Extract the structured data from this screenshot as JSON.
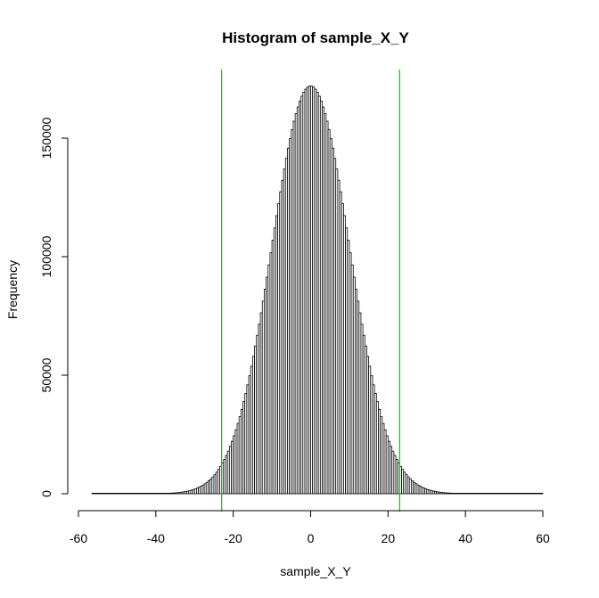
{
  "chart_data": {
    "type": "bar",
    "title": "Histogram of sample_X_Y",
    "xlabel": "sample_X_Y",
    "ylabel": "Frequency",
    "xlim": [
      -60,
      60
    ],
    "ylim": [
      0,
      175000
    ],
    "x_ticks": [
      "-60",
      "-40",
      "-20",
      "0",
      "20",
      "40",
      "60"
    ],
    "y_ticks": [
      "0",
      "50000",
      "100000",
      "150000"
    ],
    "bin_width": 0.5,
    "distribution": {
      "mean": 0,
      "sd": 10,
      "peak_frequency": 172000,
      "support": [
        -56.5,
        60
      ]
    },
    "reference_lines": {
      "x": [
        -23,
        23
      ],
      "color": "#00cc00"
    },
    "colors": {
      "bar_fill": "#ffffff",
      "bar_stroke": "#000000",
      "axis": "#000000"
    },
    "grid": false,
    "legend": "none"
  }
}
